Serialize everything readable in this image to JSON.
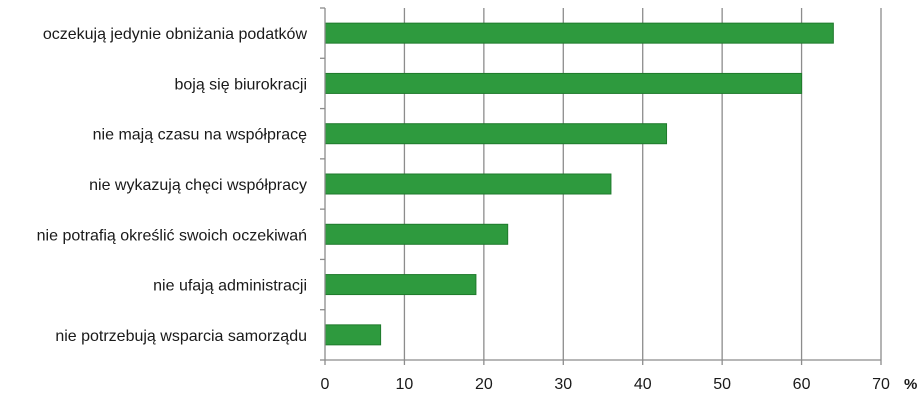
{
  "chart_data": {
    "type": "bar",
    "orientation": "horizontal",
    "categories": [
      "oczekują jedynie obniżania podatków",
      "boją się biurokracji",
      "nie mają czasu na współpracę",
      "nie wykazują chęci współpracy",
      "nie potrafią określić swoich oczekiwań",
      "nie ufają administracji",
      "nie potrzebują wsparcia samorządu"
    ],
    "values": [
      64,
      60,
      43,
      36,
      23,
      19,
      7
    ],
    "xlim": [
      0,
      70
    ],
    "xticks": [
      "0",
      "10",
      "20",
      "30",
      "40",
      "50",
      "60",
      "70"
    ],
    "unit_label": "%",
    "grid": true,
    "bar_color": "#2e9a3e",
    "bar_edge_color": "#1f7a2c"
  }
}
